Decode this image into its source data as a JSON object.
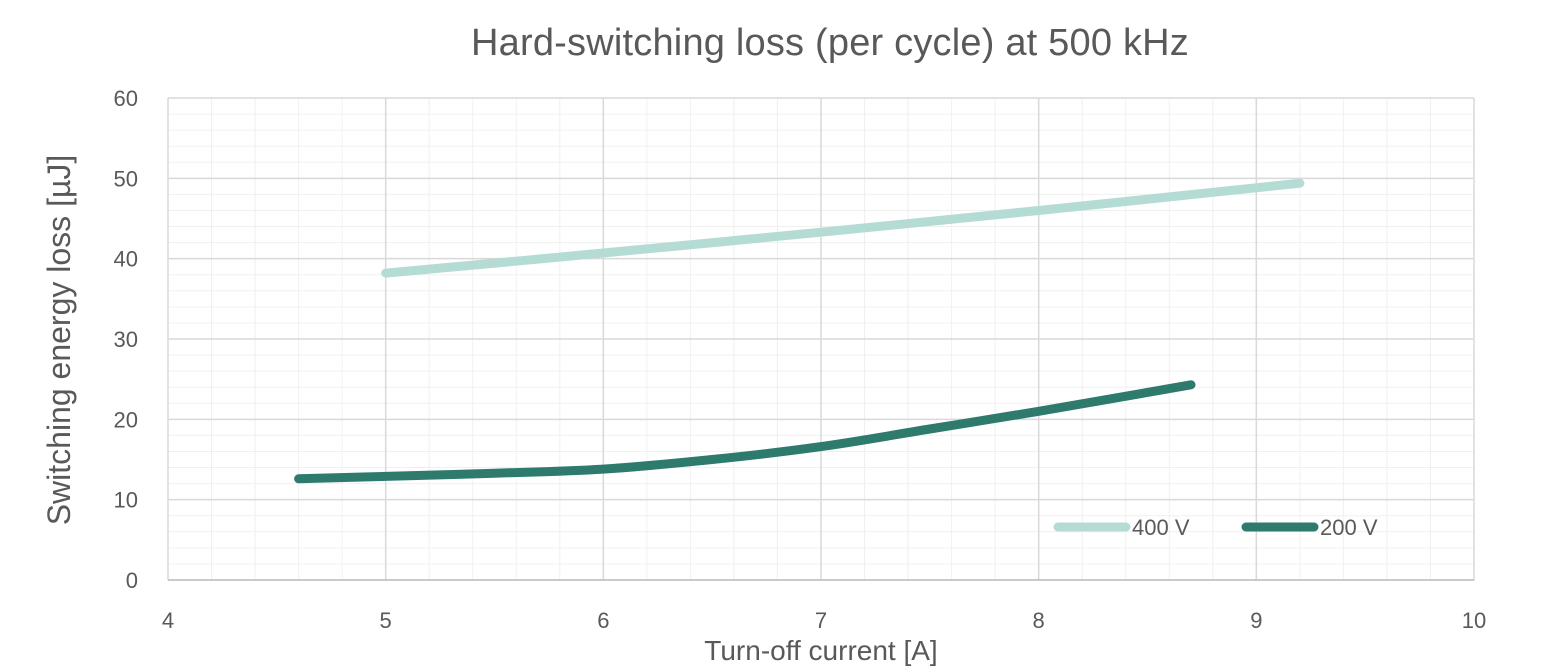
{
  "chart_data": {
    "type": "line",
    "title": "Hard-switching loss (per cycle) at 500 kHz",
    "xlabel": "Turn-off current  [A]",
    "ylabel": "Switching energy loss [µJ]",
    "xlim": [
      4,
      10
    ],
    "ylim": [
      0,
      60
    ],
    "xticks": [
      4,
      5,
      6,
      7,
      8,
      9,
      10
    ],
    "yticks": [
      0,
      10,
      20,
      30,
      40,
      50,
      60
    ],
    "grid": true,
    "legend_position": "bottom-right",
    "series": [
      {
        "name": "400 V",
        "color": "#b4dcd4",
        "points": [
          [
            5.0,
            38.2
          ],
          [
            6.0,
            40.7
          ],
          [
            7.0,
            43.3
          ],
          [
            8.0,
            46.0
          ],
          [
            9.2,
            49.4
          ]
        ]
      },
      {
        "name": "200 V",
        "color": "#2e7b6e",
        "points": [
          [
            4.6,
            12.6
          ],
          [
            5.0,
            12.9
          ],
          [
            5.5,
            13.3
          ],
          [
            6.0,
            13.8
          ],
          [
            6.5,
            15.0
          ],
          [
            7.0,
            16.6
          ],
          [
            7.5,
            18.8
          ],
          [
            8.0,
            21.0
          ],
          [
            8.7,
            24.3
          ]
        ]
      }
    ]
  }
}
